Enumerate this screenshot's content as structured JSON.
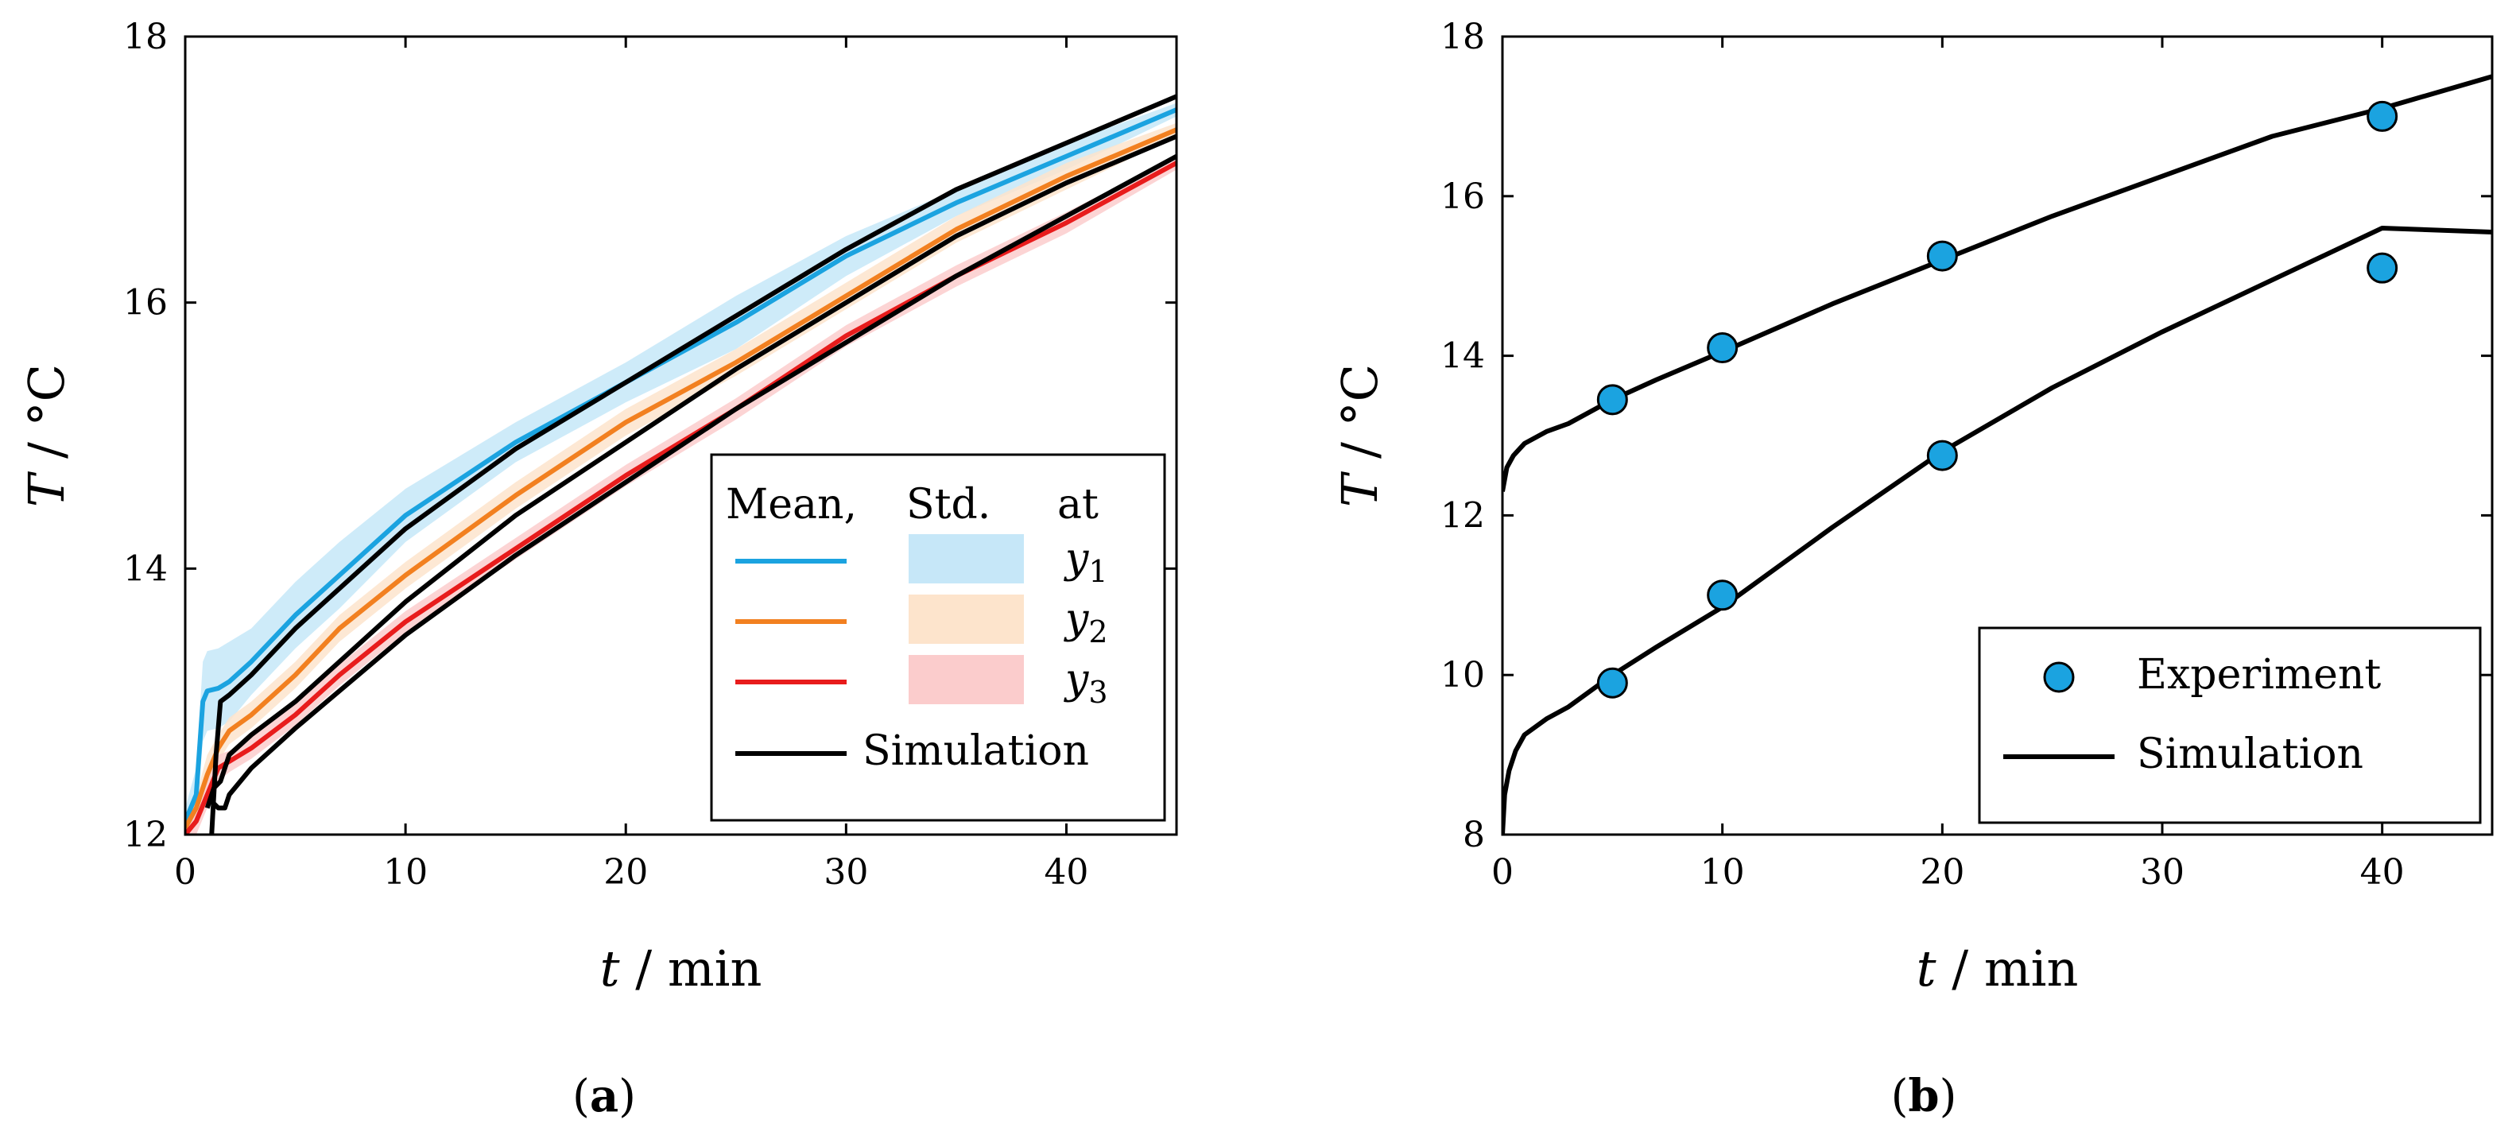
{
  "chart_data": [
    {
      "panel": "a",
      "caption": "(a)",
      "type": "line",
      "xlabel": "t / min",
      "ylabel": "T / °C",
      "xlim": [
        0,
        45
      ],
      "ylim": [
        12,
        18
      ],
      "xticks": [
        0,
        10,
        20,
        30,
        40
      ],
      "yticks": [
        12,
        14,
        16,
        18
      ],
      "grid": false,
      "legend": {
        "placement": "bottom-right",
        "header": [
          "Mean,",
          "Std.",
          "at"
        ],
        "entries": [
          "y1",
          "y2",
          "y3",
          "Simulation"
        ]
      },
      "series": [
        {
          "name": "y1",
          "kind": "mean",
          "color": "#1ba3e0",
          "band_color": "#c6e7f8",
          "x": [
            0,
            0.5,
            0.8,
            1.0,
            1.5,
            2,
            3,
            5,
            7,
            10,
            15,
            20,
            25,
            30,
            35,
            40,
            45
          ],
          "y": [
            12.1,
            12.3,
            13.0,
            13.08,
            13.1,
            13.15,
            13.3,
            13.65,
            13.95,
            14.4,
            14.95,
            15.4,
            15.85,
            16.35,
            16.75,
            17.1,
            17.45
          ],
          "std": [
            0.1,
            0.2,
            0.3,
            0.3,
            0.3,
            0.3,
            0.25,
            0.25,
            0.25,
            0.2,
            0.15,
            0.15,
            0.2,
            0.15,
            0.1,
            0.1,
            0.05
          ]
        },
        {
          "name": "y2",
          "kind": "mean",
          "color": "#f28020",
          "band_color": "#fde4cc",
          "x": [
            0,
            0.5,
            1.0,
            1.5,
            2,
            3,
            5,
            7,
            10,
            15,
            20,
            25,
            30,
            35,
            40,
            45
          ],
          "y": [
            12.05,
            12.2,
            12.45,
            12.65,
            12.78,
            12.9,
            13.2,
            13.55,
            13.95,
            14.55,
            15.1,
            15.55,
            16.05,
            16.55,
            16.95,
            17.3
          ],
          "std": [
            0.05,
            0.1,
            0.15,
            0.1,
            0.1,
            0.1,
            0.1,
            0.1,
            0.1,
            0.1,
            0.1,
            0.1,
            0.1,
            0.1,
            0.1,
            0.05
          ]
        },
        {
          "name": "y3",
          "kind": "mean",
          "color": "#e81c1c",
          "band_color": "#fbcccc",
          "x": [
            0,
            0.5,
            1.0,
            1.5,
            2,
            3,
            5,
            7,
            10,
            15,
            20,
            25,
            30,
            35,
            40,
            45
          ],
          "y": [
            12.0,
            12.1,
            12.3,
            12.5,
            12.55,
            12.65,
            12.9,
            13.2,
            13.6,
            14.15,
            14.7,
            15.2,
            15.75,
            16.2,
            16.6,
            17.05
          ],
          "std": [
            0.05,
            0.1,
            0.1,
            0.1,
            0.08,
            0.08,
            0.08,
            0.08,
            0.08,
            0.08,
            0.08,
            0.08,
            0.08,
            0.08,
            0.08,
            0.05
          ]
        },
        {
          "name": "Simulation",
          "kind": "simulation",
          "color": "#000000",
          "x": [
            1.2,
            1.4,
            1.6,
            2,
            3,
            5,
            10,
            15,
            20,
            25,
            30,
            35,
            40,
            45
          ],
          "y": [
            12.0,
            12.6,
            13.0,
            13.05,
            13.2,
            13.55,
            14.3,
            14.9,
            15.4,
            15.9,
            16.4,
            16.85,
            17.2,
            17.55
          ]
        },
        {
          "name": "Simulation",
          "kind": "simulation",
          "color": "#000000",
          "x": [
            1.0,
            1.3,
            1.6,
            2,
            3,
            5,
            10,
            15,
            20,
            25,
            30,
            35,
            40,
            45
          ],
          "y": [
            12.2,
            12.35,
            12.4,
            12.6,
            12.75,
            13.0,
            13.75,
            14.4,
            14.95,
            15.5,
            16.0,
            16.5,
            16.9,
            17.25
          ]
        },
        {
          "name": "Simulation",
          "kind": "simulation",
          "color": "#000000",
          "x": [
            1.2,
            1.5,
            1.8,
            2,
            3,
            5,
            10,
            15,
            20,
            25,
            30,
            35,
            40,
            45
          ],
          "y": [
            12.25,
            12.2,
            12.2,
            12.3,
            12.5,
            12.8,
            13.5,
            14.1,
            14.65,
            15.2,
            15.7,
            16.2,
            16.65,
            17.1
          ]
        }
      ]
    },
    {
      "panel": "b",
      "caption": "(b)",
      "type": "scatter",
      "xlabel": "t / min",
      "ylabel": "T / °C",
      "xlim": [
        0,
        45
      ],
      "ylim": [
        8,
        18
      ],
      "xticks": [
        0,
        10,
        20,
        30,
        40
      ],
      "yticks": [
        8,
        10,
        12,
        14,
        16,
        18
      ],
      "grid": false,
      "legend": {
        "placement": "bottom-right",
        "entries": [
          "Experiment",
          "Simulation"
        ]
      },
      "series": [
        {
          "name": "Experiment",
          "kind": "points",
          "color": "#1ba3e0",
          "x": [
            5,
            10,
            20,
            40,
            5,
            10,
            20,
            40
          ],
          "y": [
            13.45,
            14.1,
            15.25,
            17.0,
            9.9,
            11.0,
            12.75,
            15.1
          ]
        },
        {
          "name": "Simulation",
          "kind": "line",
          "color": "#000000",
          "x": [
            0,
            0.2,
            0.5,
            1,
            2,
            3,
            5,
            7,
            10,
            15,
            20,
            25,
            30,
            35,
            40,
            45
          ],
          "y": [
            12.3,
            12.6,
            12.75,
            12.9,
            13.05,
            13.15,
            13.45,
            13.7,
            14.05,
            14.65,
            15.2,
            15.75,
            16.25,
            16.75,
            17.1,
            17.5
          ]
        },
        {
          "name": "Simulation",
          "kind": "line",
          "color": "#000000",
          "x": [
            0,
            0.1,
            0.3,
            0.6,
            1,
            2,
            3,
            5,
            7,
            10,
            15,
            20,
            25,
            30,
            35,
            40,
            45
          ],
          "y": [
            8.0,
            8.5,
            8.8,
            9.05,
            9.25,
            9.45,
            9.6,
            10.0,
            10.35,
            10.85,
            11.85,
            12.8,
            13.6,
            14.3,
            14.95,
            15.6,
            15.55
          ]
        }
      ]
    }
  ]
}
